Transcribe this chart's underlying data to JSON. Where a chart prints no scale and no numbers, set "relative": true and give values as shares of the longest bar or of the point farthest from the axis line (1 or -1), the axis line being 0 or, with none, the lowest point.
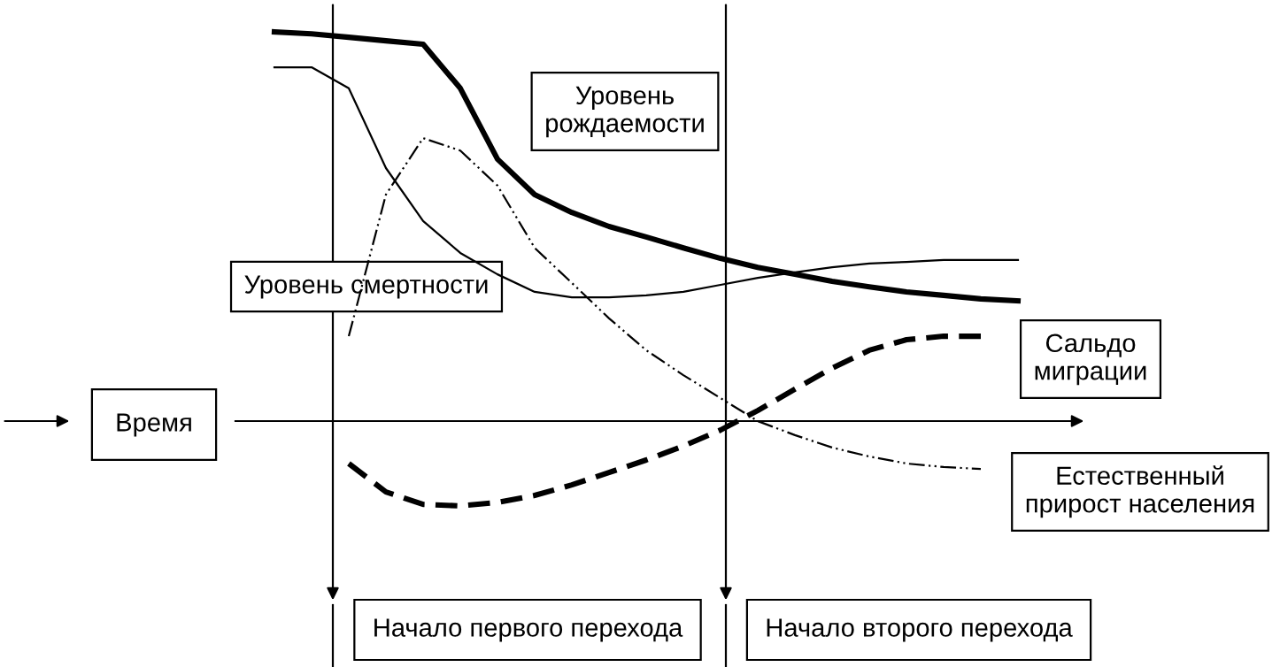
{
  "chart_data": {
    "type": "line",
    "relative": true,
    "legend": false,
    "xlabel": "Время",
    "categories": [
      null,
      null,
      null,
      null,
      null,
      null,
      null,
      null,
      null,
      null,
      null,
      null,
      null,
      null,
      null,
      null,
      null,
      null,
      null,
      null,
      null
    ],
    "series": [
      {
        "name": "Уровень\nрождаемости",
        "color": "#000000",
        "line_style": "solid",
        "values": [
          1.0,
          0.995,
          0.986,
          0.977,
          0.968,
          0.855,
          0.673,
          0.582,
          0.536,
          0.5,
          0.473,
          0.445,
          0.418,
          0.395,
          0.377,
          0.359,
          0.345,
          0.332,
          0.323,
          0.314,
          0.309
        ]
      },
      {
        "name": "Уровень смертности",
        "color": "#000000",
        "line_style": "solid",
        "values": [
          0.909,
          0.909,
          0.855,
          0.65,
          0.514,
          0.432,
          0.377,
          0.332,
          0.318,
          0.318,
          0.323,
          0.332,
          0.35,
          0.368,
          0.382,
          0.395,
          0.405,
          0.409,
          0.414,
          0.414,
          0.414
        ]
      },
      {
        "name": "Естественный\nприрост населения",
        "color": "#000000",
        "line_style": "dashdot",
        "values": [
          null,
          null,
          0.218,
          0.582,
          0.727,
          0.695,
          0.605,
          0.445,
          0.355,
          0.264,
          0.182,
          0.118,
          0.059,
          0.0,
          -0.036,
          -0.068,
          -0.091,
          -0.109,
          -0.118,
          -0.123,
          null
        ]
      },
      {
        "name": "Сальдо\nмиграции",
        "color": "#000000",
        "line_style": "dashed",
        "values": [
          null,
          null,
          -0.109,
          -0.182,
          -0.214,
          -0.218,
          -0.209,
          -0.191,
          -0.164,
          -0.132,
          -0.1,
          -0.064,
          -0.023,
          0.027,
          0.082,
          0.136,
          0.182,
          0.209,
          0.218,
          0.218,
          null
        ]
      }
    ],
    "annotations": [
      "Начало первого перехода",
      "Начало второго перехода"
    ]
  }
}
